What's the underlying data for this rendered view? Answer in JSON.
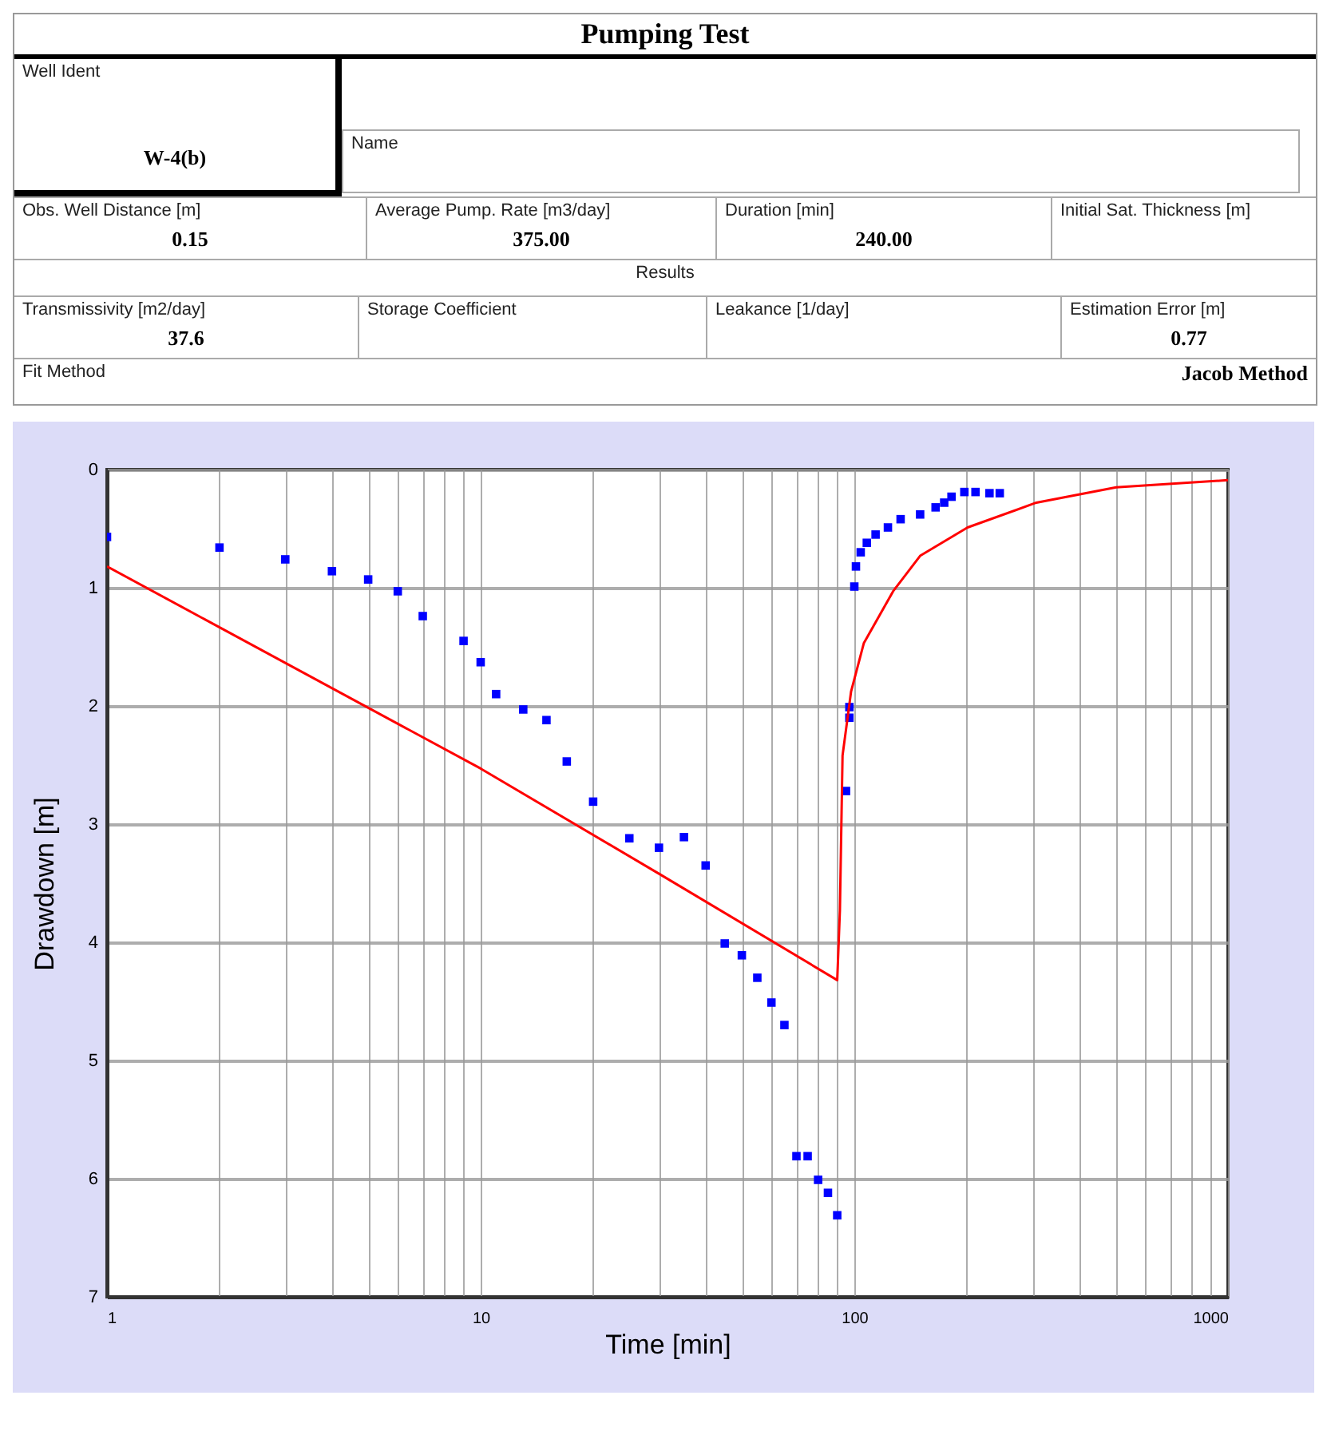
{
  "chart_data": {
    "type": "scatter",
    "title": "Pumping Test",
    "xlabel": "Time [min]",
    "ylabel": "Drawdown [m]",
    "annotations": [
      "Well Ident",
      "W-4(b)",
      "Name",
      "Obs. Well Distance [m]",
      "0.15",
      "Average Pump. Rate [m3/day]",
      "375.00",
      "Duration [min]",
      "240.00",
      "Initial Sat. Thickness [m]",
      "Results",
      "Transmissivity [m2/day]",
      "37.6",
      "Storage Coefficient",
      "Leakance [1/day]",
      "Estimation Error [m]",
      "0.77",
      "Fit Method",
      "Jacob Method"
    ],
    "log": "x",
    "grid": true,
    "xlim": [
      1,
      1000
    ],
    "xticks": [
      1,
      {
        "value": 2,
        "label": null
      },
      {
        "value": 3,
        "label": null
      },
      {
        "value": 4,
        "label": null
      },
      {
        "value": 5,
        "label": null
      },
      {
        "value": 6,
        "label": null
      },
      {
        "value": 7,
        "label": null
      },
      {
        "value": 8,
        "label": null
      },
      {
        "value": 9,
        "label": null
      },
      10,
      {
        "value": 20,
        "label": null
      },
      {
        "value": 30,
        "label": null
      },
      {
        "value": 40,
        "label": null
      },
      {
        "value": 50,
        "label": null
      },
      {
        "value": 60,
        "label": null
      },
      {
        "value": 70,
        "label": null
      },
      {
        "value": 80,
        "label": null
      },
      {
        "value": 90,
        "label": null
      },
      100,
      {
        "value": 200,
        "label": null
      },
      {
        "value": 300,
        "label": null
      },
      {
        "value": 400,
        "label": null
      },
      {
        "value": 500,
        "label": null
      },
      {
        "value": 600,
        "label": null
      },
      {
        "value": 700,
        "label": null
      },
      {
        "value": 800,
        "label": null
      },
      {
        "value": 900,
        "label": null
      },
      1000
    ],
    "ylim": [
      7,
      0
    ],
    "yticks": [
      0,
      1,
      2,
      3,
      4,
      5,
      6,
      7
    ],
    "series": [
      {
        "type": "scatter",
        "marker": "square",
        "color": "#0000ff",
        "x": [
          1,
          2,
          3,
          4,
          5,
          6,
          7,
          9,
          10,
          11,
          13,
          15,
          17,
          20,
          25,
          30,
          35,
          40,
          45,
          50,
          55,
          60,
          65,
          70,
          75,
          80,
          85,
          90,
          95,
          97,
          97,
          100,
          101,
          104,
          108,
          114,
          123,
          133,
          150,
          165,
          174,
          182,
          197,
          211,
          230,
          245
        ],
        "values": [
          0.57,
          0.66,
          0.76,
          0.86,
          0.93,
          1.03,
          1.24,
          1.45,
          1.63,
          1.9,
          2.03,
          2.12,
          2.47,
          2.81,
          3.12,
          3.2,
          3.11,
          3.35,
          4.01,
          4.11,
          4.3,
          4.51,
          4.7,
          5.81,
          5.81,
          6.01,
          6.12,
          6.31,
          2.72,
          2.01,
          2.1,
          0.99,
          0.82,
          0.7,
          0.62,
          0.55,
          0.49,
          0.42,
          0.38,
          0.32,
          0.28,
          0.23,
          0.19,
          0.19,
          0.2,
          0.2
        ]
      },
      {
        "type": "line",
        "marker": "none",
        "line_style": "solid",
        "color": "#ff0000",
        "x": [
          1,
          10,
          30,
          90,
          91.5,
          93,
          98,
          106,
          127,
          150,
          201,
          307,
          502,
          1000
        ],
        "values": [
          0.82,
          2.53,
          3.42,
          4.32,
          3.73,
          2.42,
          1.88,
          1.47,
          1.03,
          0.73,
          0.49,
          0.28,
          0.15,
          0.09
        ]
      }
    ]
  }
}
